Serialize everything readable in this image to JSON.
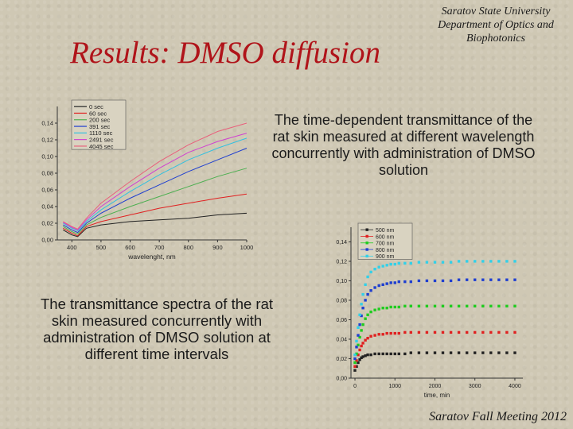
{
  "slide": {
    "title": "Results: DMSO diffusion",
    "institution": [
      "Saratov State University",
      "Department of Optics and",
      "Biophotonics"
    ],
    "description_top": "The time-dependent transmittance of the rat skin measured at different wavelength concurrently with administration of DMSO solution",
    "description_bottom": "The transmittance spectra of the rat skin measured concurrently with administration of DMSO solution at different time intervals",
    "footer": "Saratov Fall Meeting 2012"
  },
  "chart_data": [
    {
      "type": "line",
      "title": "",
      "xlabel": "wavelenght, nm",
      "ylabel": "",
      "xlim": [
        350,
        1000
      ],
      "ylim": [
        0,
        0.16
      ],
      "xticks": [
        "400",
        "500",
        "600",
        "700",
        "800",
        "900",
        "1000"
      ],
      "yticks": [
        "0,00",
        "0,02",
        "0,04",
        "0,06",
        "0,08",
        "0,10",
        "0,12",
        "0,14"
      ],
      "legend": "top-left",
      "grid": false,
      "x": [
        370,
        400,
        420,
        450,
        500,
        600,
        700,
        800,
        900,
        1000
      ],
      "series": [
        {
          "name": "0 sec",
          "color": "#222222",
          "values": [
            0.012,
            0.006,
            0.004,
            0.014,
            0.018,
            0.022,
            0.024,
            0.026,
            0.03,
            0.032
          ]
        },
        {
          "name": "60 sec",
          "color": "#e02020",
          "values": [
            0.014,
            0.008,
            0.005,
            0.016,
            0.022,
            0.03,
            0.038,
            0.044,
            0.05,
            0.055
          ]
        },
        {
          "name": "200 sec",
          "color": "#4caf50",
          "values": [
            0.016,
            0.01,
            0.007,
            0.018,
            0.027,
            0.04,
            0.052,
            0.064,
            0.076,
            0.086
          ]
        },
        {
          "name": "391 sec",
          "color": "#1f3fd0",
          "values": [
            0.018,
            0.012,
            0.009,
            0.02,
            0.032,
            0.05,
            0.066,
            0.082,
            0.096,
            0.11
          ]
        },
        {
          "name": "1110 sec",
          "color": "#33c0e0",
          "values": [
            0.02,
            0.014,
            0.011,
            0.022,
            0.036,
            0.058,
            0.078,
            0.096,
            0.11,
            0.122
          ]
        },
        {
          "name": "2491 sec",
          "color": "#d040d0",
          "values": [
            0.021,
            0.015,
            0.012,
            0.024,
            0.04,
            0.064,
            0.086,
            0.105,
            0.118,
            0.128
          ]
        },
        {
          "name": "4045 sec",
          "color": "#e8607c",
          "values": [
            0.022,
            0.016,
            0.013,
            0.026,
            0.044,
            0.07,
            0.094,
            0.114,
            0.13,
            0.14
          ]
        }
      ]
    },
    {
      "type": "scatter",
      "title": "",
      "xlabel": "time, min",
      "ylabel": "",
      "xlim": [
        -100,
        4200
      ],
      "ylim": [
        0,
        0.155
      ],
      "xticks": [
        "0",
        "1000",
        "2000",
        "3000",
        "4000"
      ],
      "yticks": [
        "0,00",
        "0,02",
        "0,04",
        "0,06",
        "0,08",
        "0,10",
        "0,12",
        "0,14"
      ],
      "legend": "top-left",
      "grid": false,
      "x": [
        0,
        40,
        80,
        120,
        160,
        200,
        260,
        320,
        400,
        500,
        600,
        700,
        800,
        900,
        1000,
        1100,
        1250,
        1400,
        1600,
        1800,
        2000,
        2200,
        2400,
        2600,
        2800,
        3000,
        3200,
        3400,
        3600,
        3800,
        4000
      ],
      "series": [
        {
          "name": "500 nm",
          "color": "#222222",
          "values": [
            0.008,
            0.012,
            0.016,
            0.019,
            0.021,
            0.022,
            0.023,
            0.024,
            0.024,
            0.025,
            0.025,
            0.025,
            0.025,
            0.025,
            0.025,
            0.025,
            0.025,
            0.026,
            0.026,
            0.026,
            0.026,
            0.026,
            0.026,
            0.026,
            0.026,
            0.026,
            0.026,
            0.026,
            0.026,
            0.026,
            0.026
          ]
        },
        {
          "name": "600 nm",
          "color": "#e02020",
          "values": [
            0.012,
            0.018,
            0.024,
            0.029,
            0.033,
            0.036,
            0.039,
            0.041,
            0.043,
            0.044,
            0.045,
            0.045,
            0.046,
            0.046,
            0.046,
            0.046,
            0.047,
            0.047,
            0.047,
            0.047,
            0.047,
            0.047,
            0.047,
            0.047,
            0.047,
            0.047,
            0.047,
            0.047,
            0.047,
            0.047,
            0.047
          ]
        },
        {
          "name": "700 nm",
          "color": "#1fcc1f",
          "values": [
            0.016,
            0.025,
            0.034,
            0.042,
            0.049,
            0.055,
            0.061,
            0.065,
            0.068,
            0.07,
            0.071,
            0.072,
            0.072,
            0.073,
            0.073,
            0.073,
            0.074,
            0.074,
            0.074,
            0.074,
            0.074,
            0.074,
            0.074,
            0.074,
            0.074,
            0.074,
            0.074,
            0.074,
            0.074,
            0.074,
            0.074
          ]
        },
        {
          "name": "800 nm",
          "color": "#1f3fd0",
          "values": [
            0.02,
            0.032,
            0.044,
            0.055,
            0.064,
            0.072,
            0.08,
            0.086,
            0.09,
            0.093,
            0.095,
            0.096,
            0.097,
            0.098,
            0.098,
            0.099,
            0.099,
            0.099,
            0.1,
            0.1,
            0.1,
            0.1,
            0.1,
            0.101,
            0.101,
            0.101,
            0.101,
            0.101,
            0.101,
            0.101,
            0.101
          ]
        },
        {
          "name": "900 nm",
          "color": "#33d0e8",
          "values": [
            0.024,
            0.038,
            0.052,
            0.065,
            0.076,
            0.086,
            0.096,
            0.104,
            0.109,
            0.112,
            0.114,
            0.115,
            0.116,
            0.117,
            0.117,
            0.118,
            0.118,
            0.118,
            0.119,
            0.119,
            0.119,
            0.119,
            0.119,
            0.12,
            0.12,
            0.12,
            0.12,
            0.12,
            0.12,
            0.12,
            0.12
          ]
        }
      ]
    }
  ]
}
